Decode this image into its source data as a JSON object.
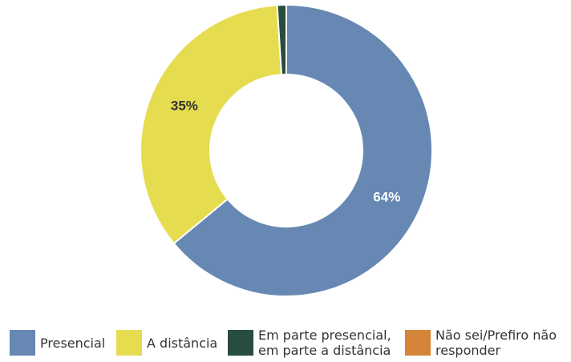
{
  "chart_data": {
    "type": "donut",
    "categories": [
      "Presencial",
      "A distância",
      "Em parte presencial, em parte a distância",
      "Não sei/Prefiro não responder"
    ],
    "values": [
      64,
      35,
      1,
      0
    ],
    "value_labels": [
      "64%",
      "35%",
      null,
      null
    ],
    "colors": [
      "#6688b3",
      "#e6dc50",
      "#264d3e",
      "#d4853a"
    ],
    "legend": "bottom"
  }
}
